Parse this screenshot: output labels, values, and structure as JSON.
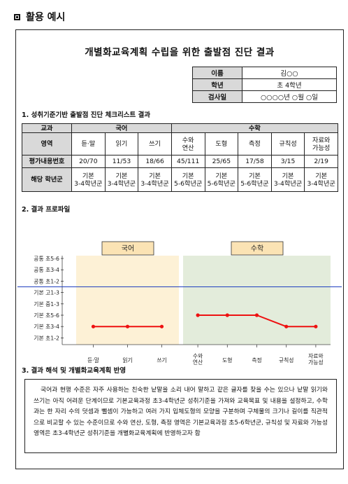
{
  "header": {
    "icon": "square-icon",
    "title": "활용 예시"
  },
  "doc_title": "개별화교육계획 수립을 위한 출발점 진단 결과",
  "info": [
    {
      "label": "이름",
      "value": "김○○"
    },
    {
      "label": "학년",
      "value": "초 4학년"
    },
    {
      "label": "검사일",
      "value": "○○○○년 ○월 ○일"
    }
  ],
  "section1": "1. 성취기준기반 출발점 진단 체크리스트 결과",
  "section2": "2. 결과 프로파일",
  "section3": "3. 결과 해석 및 개별화교육계획 반영",
  "table": {
    "col_subject": "교과",
    "col_area": "영역",
    "row_score": "평가내용번호",
    "row_grade": "해당 학년군",
    "groups": [
      "국어",
      "수학"
    ],
    "areas": [
      "듣·말",
      "읽기",
      "쓰기",
      "수와\n연산",
      "도형",
      "측정",
      "규칙성",
      "자료와\n가능성"
    ],
    "scores": [
      "20/70",
      "11/53",
      "18/66",
      "45/111",
      "25/65",
      "17/58",
      "3/15",
      "2/19"
    ],
    "grades": [
      "기본\n3-4학년군",
      "기본\n3-4학년군",
      "기본\n3-4학년군",
      "기본\n5-6학년군",
      "기본\n5-6학년군",
      "기본\n5-6학년군",
      "기본\n3-4학년군",
      "기본\n3-4학년군"
    ]
  },
  "chart_data": {
    "type": "line",
    "panels": [
      "국어",
      "수학"
    ],
    "y_levels": [
      "공통 초5-6",
      "공통 초3-4",
      "공통 초1-2",
      "기본 고1-3",
      "기본 중1-3",
      "기본 초5-6",
      "기본 초3-4",
      "기본 초1-2"
    ],
    "reference_line_between": [
      "공통 초1-2",
      "기본 고1-3"
    ],
    "series": [
      {
        "panel": "국어",
        "categories": [
          "듣·말",
          "읽기",
          "쓰기"
        ],
        "values": [
          "기본 초3-4",
          "기본 초3-4",
          "기본 초3-4"
        ]
      },
      {
        "panel": "수학",
        "categories": [
          "수와\n연산",
          "도형",
          "측정",
          "규칙성",
          "자료와\n가능성"
        ],
        "values": [
          "기본 초5-6",
          "기본 초5-6",
          "기본 초5-6",
          "기본 초3-4",
          "기본 초3-4"
        ]
      }
    ],
    "colors": {
      "line": "#ee1111",
      "reference": "#1f3fbf",
      "kor_bg": "#fdf1d6",
      "math_bg": "#e3ecdb",
      "label_bg": "#fbe3b4"
    }
  },
  "interpretation": "국어과 현행 수준은 자주 사용하는 친숙한 낱말을 소리 내어 말하고 같은 글자를 찾을 수는 있으나 낱말 읽기와 쓰기는 아직 어려운 단계이므로 기본교육과정 초3-4학년군 성취기준을 가져와 교육목표 및 내용을 설정하고, 수학과는 한 자리 수의 덧셈과 뺄셈이 가능하고 여러 가지 입체도형의 모양을 구분하며 구체물의 크기나 길이를 직관적으로 비교할 수 있는 수준이므로 수와 연산, 도형, 측정 영역은 기본교육과정 초5-6학년군, 규칙성 및 자료와 가능성 영역은 초3-4학년군 성취기준을 개별화교육계획에 반영하고자 함"
}
